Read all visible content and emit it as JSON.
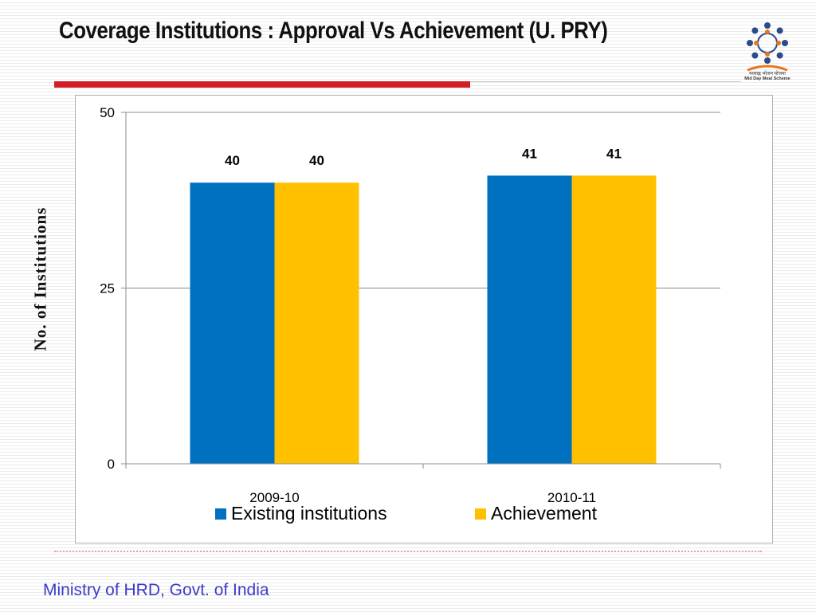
{
  "slide": {
    "title": "Coverage Institutions : Approval Vs Achievement (U. PRY)",
    "footer": "Ministry of HRD, Govt. of India",
    "logo_text_hindi": "मध्याह्न भोजन योजना",
    "logo_text_english": "Mid Day Meal Scheme"
  },
  "colors": {
    "accent_red": "#d21f26",
    "existing": "#0070c0",
    "achievement": "#ffc000",
    "footer_text": "#3b3bc8"
  },
  "chart_data": {
    "type": "bar",
    "title": "",
    "xlabel": "",
    "ylabel": "No. of Institutions",
    "categories": [
      "2009-10",
      "2010-11"
    ],
    "series": [
      {
        "name": "Existing institutions",
        "values": [
          40,
          41
        ],
        "labels": [
          "40",
          "41"
        ],
        "color": "#0070c0"
      },
      {
        "name": "Achievement",
        "values": [
          40,
          41
        ],
        "labels": [
          "40",
          "41"
        ],
        "color": "#ffc000"
      }
    ],
    "ylim": [
      0,
      50
    ],
    "yticks": [
      0,
      25,
      50
    ],
    "grid": true,
    "legend": "bottom"
  }
}
